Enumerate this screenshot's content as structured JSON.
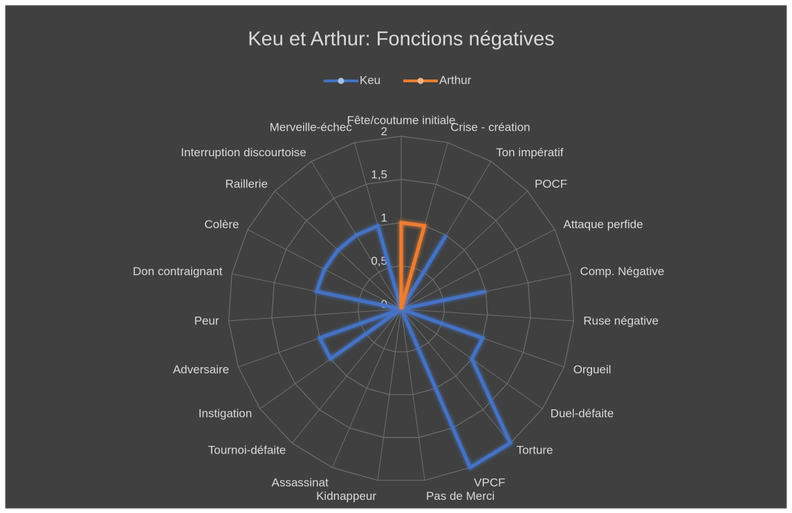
{
  "chart_data": {
    "type": "radar",
    "title": "Keu et Arthur: Fonctions négatives",
    "categories": [
      "Fête/coutume initiale",
      "Crise - création",
      "Ton impératif",
      "POCF",
      "Attaque perfide",
      "Comp. Négative",
      "Ruse négative",
      "Orgueil",
      "Duel-défaite",
      "Torture",
      "VPCF",
      "Pas de Merci",
      "Kidnappeur",
      "Assassinat",
      "Tournoi-défaite",
      "Instigation",
      "Adversaire",
      "Peur",
      "Don contraignant",
      "Colère",
      "Raillerie",
      "Interruption discourtoise",
      "Merveille-échec"
    ],
    "series": [
      {
        "name": "Keu",
        "color": "#4472c4",
        "values": [
          0,
          0,
          1,
          0,
          0,
          1,
          0,
          1,
          1,
          2,
          2,
          0,
          0,
          0,
          0,
          1,
          1,
          0,
          1,
          1,
          1,
          1,
          1
        ]
      },
      {
        "name": "Arthur",
        "color": "#ed7d31",
        "values": [
          1,
          1,
          0,
          0,
          0,
          0,
          0,
          0,
          0,
          0,
          0,
          0,
          0,
          0,
          0,
          0,
          0,
          0,
          0,
          0,
          0,
          0,
          0
        ]
      }
    ],
    "ylim": [
      0,
      2
    ],
    "yticks": [
      0,
      {
        "value": 0.5,
        "label": "0,5"
      },
      1,
      {
        "value": 1.5,
        "label": "1,5"
      },
      2
    ],
    "grid": true,
    "legend": "top"
  }
}
